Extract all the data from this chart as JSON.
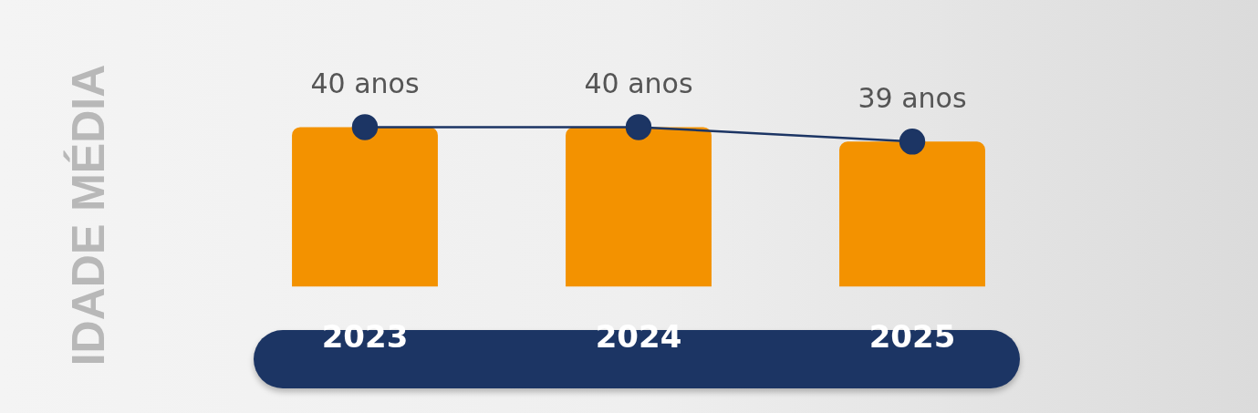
{
  "chart_data": {
    "type": "bar",
    "ylabel": "IDADE MÉDIA",
    "categories": [
      "2023",
      "2024",
      "2025"
    ],
    "series": [
      {
        "color": "#f39200",
        "values": [
          40,
          40,
          39
        ]
      },
      {
        "type": "line",
        "color": "#1c3564",
        "values": [
          40,
          40,
          39
        ],
        "value_labels": [
          "40 anos",
          "40 anos",
          "39 anos"
        ]
      }
    ],
    "tick_labels": "x",
    "grid": false,
    "legend": false,
    "marker": "circle",
    "line_style": "solid"
  }
}
